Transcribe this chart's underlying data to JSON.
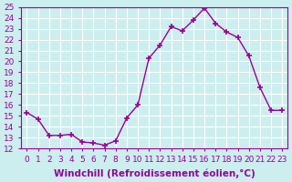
{
  "x": [
    0,
    1,
    2,
    3,
    4,
    5,
    6,
    7,
    8,
    9,
    10,
    11,
    12,
    13,
    14,
    15,
    16,
    17,
    18,
    19,
    20,
    21,
    22,
    23
  ],
  "y": [
    15.3,
    14.7,
    13.2,
    13.2,
    13.3,
    12.6,
    12.5,
    12.3,
    12.7,
    14.8,
    16.0,
    20.3,
    21.5,
    23.2,
    22.8,
    23.8,
    24.9,
    23.5,
    22.7,
    22.2,
    20.5,
    17.6,
    15.5,
    15.5
  ],
  "line_color": "#990099",
  "marker": "+",
  "marker_size": 5,
  "bg_color": "#cceeee",
  "grid_color": "#ffffff",
  "xlabel": "Windchill (Refroidissement éolien,°C)",
  "xlabel_fontsize": 7.5,
  "tick_fontsize": 6.5,
  "ylim": [
    12,
    25
  ],
  "xlim_min": -0.5,
  "xlim_max": 23.5,
  "yticks": [
    12,
    13,
    14,
    15,
    16,
    17,
    18,
    19,
    20,
    21,
    22,
    23,
    24,
    25
  ],
  "xticks": [
    0,
    1,
    2,
    3,
    4,
    5,
    6,
    7,
    8,
    9,
    10,
    11,
    12,
    13,
    14,
    15,
    16,
    17,
    18,
    19,
    20,
    21,
    22,
    23
  ]
}
